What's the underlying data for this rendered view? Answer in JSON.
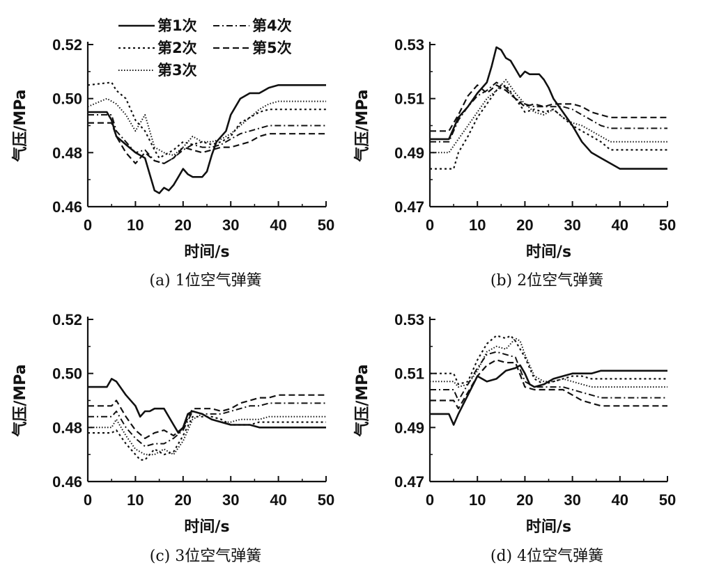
{
  "legend": [
    {
      "label": "第1次",
      "dash": "solid"
    },
    {
      "label": "第2次",
      "dash": "dot"
    },
    {
      "label": "第3次",
      "dash": "finedot"
    },
    {
      "label": "第4次",
      "dash": "dashdot"
    },
    {
      "label": "第5次",
      "dash": "dash"
    }
  ],
  "chart_data": [
    {
      "type": "line",
      "caption": "(a) 1位空气弹簧",
      "xlabel": "时间/s",
      "ylabel": "气压/MPa",
      "xlim": [
        0,
        50
      ],
      "ylim": [
        0.46,
        0.52
      ],
      "xticks": [
        "0",
        "10",
        "20",
        "30",
        "40",
        "50"
      ],
      "yticks": [
        "0.46",
        "0.48",
        "0.50",
        "0.52"
      ],
      "legend_position": "top",
      "series": [
        {
          "name": "第1次",
          "x": [
            0,
            4,
            5,
            6,
            8,
            10,
            12,
            13,
            14,
            15,
            16,
            17,
            18,
            19,
            20,
            21,
            22,
            24,
            25,
            26,
            27,
            29,
            30,
            32,
            34,
            36,
            38,
            40,
            50
          ],
          "y": [
            0.495,
            0.495,
            0.492,
            0.486,
            0.483,
            0.48,
            0.478,
            0.472,
            0.466,
            0.465,
            0.467,
            0.466,
            0.468,
            0.471,
            0.474,
            0.472,
            0.471,
            0.471,
            0.473,
            0.479,
            0.484,
            0.488,
            0.494,
            0.5,
            0.502,
            0.502,
            0.504,
            0.505,
            0.505
          ]
        },
        {
          "name": "第2次",
          "x": [
            0,
            5,
            6,
            8,
            10,
            12,
            14,
            15,
            16,
            18,
            20,
            22,
            24,
            26,
            28,
            30,
            32,
            34,
            36,
            38,
            40,
            50
          ],
          "y": [
            0.505,
            0.506,
            0.503,
            0.5,
            0.492,
            0.488,
            0.481,
            0.478,
            0.479,
            0.481,
            0.484,
            0.483,
            0.484,
            0.483,
            0.484,
            0.486,
            0.491,
            0.493,
            0.495,
            0.496,
            0.496,
            0.496
          ]
        },
        {
          "name": "第3次",
          "x": [
            0,
            4,
            6,
            8,
            10,
            12,
            14,
            16,
            18,
            20,
            22,
            24,
            26,
            28,
            30,
            32,
            34,
            36,
            38,
            40,
            50
          ],
          "y": [
            0.497,
            0.5,
            0.498,
            0.494,
            0.488,
            0.494,
            0.482,
            0.48,
            0.479,
            0.482,
            0.486,
            0.484,
            0.484,
            0.485,
            0.487,
            0.49,
            0.493,
            0.496,
            0.498,
            0.499,
            0.499
          ]
        },
        {
          "name": "第4次",
          "x": [
            0,
            5,
            6,
            8,
            10,
            12,
            14,
            16,
            18,
            20,
            22,
            24,
            26,
            28,
            30,
            32,
            34,
            36,
            38,
            40,
            50
          ],
          "y": [
            0.494,
            0.494,
            0.488,
            0.484,
            0.48,
            0.481,
            0.477,
            0.476,
            0.478,
            0.481,
            0.483,
            0.482,
            0.482,
            0.483,
            0.485,
            0.487,
            0.488,
            0.489,
            0.49,
            0.49,
            0.49
          ]
        },
        {
          "name": "第5次",
          "x": [
            0,
            5,
            6,
            8,
            10,
            12,
            14,
            16,
            18,
            20,
            22,
            24,
            26,
            28,
            30,
            32,
            34,
            36,
            38,
            40,
            50
          ],
          "y": [
            0.491,
            0.491,
            0.486,
            0.48,
            0.476,
            0.48,
            0.477,
            0.476,
            0.478,
            0.482,
            0.481,
            0.48,
            0.481,
            0.482,
            0.482,
            0.483,
            0.484,
            0.486,
            0.487,
            0.487,
            0.487
          ]
        }
      ]
    },
    {
      "type": "line",
      "caption": "(b) 2位空气弹簧",
      "xlabel": "时间/s",
      "ylabel": "气压/MPa",
      "xlim": [
        0,
        50
      ],
      "ylim": [
        0.47,
        0.53
      ],
      "xticks": [
        "0",
        "10",
        "20",
        "30",
        "40",
        "50"
      ],
      "yticks": [
        "0.47",
        "0.49",
        "0.51",
        "0.53"
      ],
      "series": [
        {
          "name": "第1次",
          "x": [
            0,
            4,
            6,
            8,
            10,
            12,
            13,
            14,
            15,
            16,
            17,
            18,
            19,
            20,
            21,
            22,
            23,
            24,
            25,
            26,
            28,
            30,
            32,
            34,
            36,
            38,
            40,
            50
          ],
          "y": [
            0.495,
            0.495,
            0.503,
            0.507,
            0.512,
            0.516,
            0.522,
            0.529,
            0.528,
            0.525,
            0.524,
            0.521,
            0.518,
            0.52,
            0.519,
            0.519,
            0.519,
            0.517,
            0.514,
            0.51,
            0.505,
            0.5,
            0.494,
            0.49,
            0.488,
            0.486,
            0.484,
            0.484
          ]
        },
        {
          "name": "第2次",
          "x": [
            0,
            5,
            6,
            8,
            10,
            12,
            14,
            16,
            18,
            20,
            22,
            24,
            26,
            28,
            30,
            32,
            34,
            36,
            38,
            40,
            50
          ],
          "y": [
            0.484,
            0.484,
            0.49,
            0.496,
            0.503,
            0.508,
            0.513,
            0.515,
            0.51,
            0.505,
            0.506,
            0.505,
            0.506,
            0.503,
            0.5,
            0.498,
            0.496,
            0.494,
            0.491,
            0.491,
            0.491
          ]
        },
        {
          "name": "第3次",
          "x": [
            0,
            4,
            6,
            8,
            10,
            12,
            14,
            16,
            18,
            20,
            22,
            24,
            26,
            28,
            30,
            32,
            34,
            36,
            38,
            40,
            50
          ],
          "y": [
            0.49,
            0.49,
            0.495,
            0.5,
            0.505,
            0.51,
            0.513,
            0.517,
            0.512,
            0.508,
            0.505,
            0.504,
            0.506,
            0.503,
            0.501,
            0.5,
            0.498,
            0.496,
            0.494,
            0.494,
            0.494
          ]
        },
        {
          "name": "第4次",
          "x": [
            0,
            4,
            6,
            8,
            10,
            12,
            14,
            16,
            18,
            20,
            22,
            24,
            26,
            28,
            30,
            32,
            34,
            36,
            38,
            40,
            50
          ],
          "y": [
            0.494,
            0.494,
            0.502,
            0.507,
            0.511,
            0.513,
            0.516,
            0.514,
            0.51,
            0.508,
            0.507,
            0.507,
            0.507,
            0.507,
            0.506,
            0.504,
            0.502,
            0.5,
            0.499,
            0.499,
            0.499
          ]
        },
        {
          "name": "第5次",
          "x": [
            0,
            4,
            6,
            8,
            10,
            12,
            14,
            16,
            18,
            20,
            22,
            24,
            26,
            28,
            30,
            32,
            34,
            36,
            38,
            40,
            50
          ],
          "y": [
            0.498,
            0.498,
            0.504,
            0.511,
            0.515,
            0.512,
            0.515,
            0.513,
            0.51,
            0.507,
            0.508,
            0.507,
            0.508,
            0.508,
            0.508,
            0.507,
            0.505,
            0.504,
            0.503,
            0.503,
            0.503
          ]
        }
      ]
    },
    {
      "type": "line",
      "caption": "(c) 3位空气弹簧",
      "xlabel": "时间/s",
      "ylabel": "气压/MPa",
      "xlim": [
        0,
        50
      ],
      "ylim": [
        0.46,
        0.52
      ],
      "xticks": [
        "0",
        "10",
        "20",
        "30",
        "40",
        "50"
      ],
      "yticks": [
        "0.46",
        "0.48",
        "0.50",
        "0.52"
      ],
      "series": [
        {
          "name": "第1次",
          "x": [
            0,
            4,
            5,
            6,
            8,
            10,
            11,
            12,
            13,
            14,
            16,
            18,
            19,
            20,
            21,
            22,
            24,
            26,
            28,
            30,
            32,
            34,
            36,
            40,
            50
          ],
          "y": [
            0.495,
            0.495,
            0.498,
            0.497,
            0.492,
            0.488,
            0.484,
            0.486,
            0.486,
            0.487,
            0.487,
            0.481,
            0.478,
            0.48,
            0.485,
            0.486,
            0.485,
            0.483,
            0.482,
            0.481,
            0.481,
            0.481,
            0.48,
            0.48,
            0.48
          ]
        },
        {
          "name": "第2次",
          "x": [
            0,
            5,
            6,
            8,
            10,
            11,
            12,
            14,
            16,
            18,
            20,
            22,
            24,
            26,
            28,
            30,
            32,
            34,
            36,
            38,
            40,
            50
          ],
          "y": [
            0.478,
            0.478,
            0.479,
            0.474,
            0.47,
            0.468,
            0.468,
            0.472,
            0.47,
            0.471,
            0.477,
            0.484,
            0.484,
            0.484,
            0.483,
            0.481,
            0.481,
            0.481,
            0.482,
            0.482,
            0.482,
            0.482
          ]
        },
        {
          "name": "第3次",
          "x": [
            0,
            5,
            6,
            8,
            10,
            12,
            14,
            16,
            18,
            20,
            22,
            24,
            26,
            28,
            30,
            32,
            34,
            36,
            38,
            40,
            50
          ],
          "y": [
            0.48,
            0.48,
            0.483,
            0.477,
            0.472,
            0.47,
            0.47,
            0.472,
            0.47,
            0.475,
            0.483,
            0.485,
            0.483,
            0.482,
            0.482,
            0.483,
            0.483,
            0.483,
            0.484,
            0.484,
            0.484
          ]
        },
        {
          "name": "第4次",
          "x": [
            0,
            5,
            6,
            8,
            10,
            12,
            14,
            16,
            18,
            20,
            22,
            24,
            26,
            28,
            30,
            32,
            34,
            36,
            38,
            40,
            50
          ],
          "y": [
            0.484,
            0.484,
            0.486,
            0.48,
            0.476,
            0.473,
            0.474,
            0.474,
            0.476,
            0.479,
            0.486,
            0.485,
            0.485,
            0.485,
            0.486,
            0.487,
            0.488,
            0.488,
            0.489,
            0.489,
            0.489
          ]
        },
        {
          "name": "第5次",
          "x": [
            0,
            5,
            6,
            8,
            10,
            12,
            14,
            16,
            18,
            20,
            22,
            24,
            26,
            28,
            30,
            32,
            34,
            36,
            38,
            40,
            50
          ],
          "y": [
            0.488,
            0.488,
            0.49,
            0.484,
            0.479,
            0.476,
            0.478,
            0.479,
            0.477,
            0.48,
            0.487,
            0.487,
            0.487,
            0.486,
            0.487,
            0.489,
            0.49,
            0.491,
            0.491,
            0.492,
            0.492
          ]
        }
      ]
    },
    {
      "type": "line",
      "caption": "(d) 4位空气弹簧",
      "xlabel": "时间/s",
      "ylabel": "气压/MPa",
      "xlim": [
        0,
        50
      ],
      "ylim": [
        0.47,
        0.53
      ],
      "xticks": [
        "0",
        "10",
        "20",
        "30",
        "40",
        "50"
      ],
      "yticks": [
        "0.47",
        "0.49",
        "0.51",
        "0.53"
      ],
      "series": [
        {
          "name": "第1次",
          "x": [
            0,
            4,
            5,
            6,
            8,
            10,
            12,
            14,
            16,
            18,
            19,
            20,
            21,
            22,
            24,
            26,
            28,
            30,
            32,
            34,
            36,
            40,
            50
          ],
          "y": [
            0.495,
            0.495,
            0.491,
            0.495,
            0.502,
            0.509,
            0.507,
            0.508,
            0.511,
            0.512,
            0.513,
            0.51,
            0.506,
            0.505,
            0.506,
            0.508,
            0.509,
            0.51,
            0.51,
            0.51,
            0.511,
            0.511,
            0.511
          ]
        },
        {
          "name": "第2次",
          "x": [
            0,
            5,
            6,
            8,
            10,
            12,
            14,
            16,
            17,
            18,
            20,
            22,
            24,
            26,
            28,
            30,
            32,
            34,
            36,
            38,
            40,
            50
          ],
          "y": [
            0.51,
            0.51,
            0.506,
            0.507,
            0.515,
            0.521,
            0.524,
            0.523,
            0.524,
            0.522,
            0.516,
            0.508,
            0.506,
            0.507,
            0.508,
            0.509,
            0.509,
            0.508,
            0.508,
            0.508,
            0.508,
            0.508
          ]
        },
        {
          "name": "第3次",
          "x": [
            0,
            5,
            6,
            8,
            10,
            12,
            14,
            16,
            18,
            19,
            20,
            22,
            24,
            26,
            28,
            30,
            32,
            34,
            36,
            38,
            40,
            50
          ],
          "y": [
            0.507,
            0.507,
            0.505,
            0.506,
            0.511,
            0.518,
            0.52,
            0.519,
            0.523,
            0.522,
            0.517,
            0.509,
            0.507,
            0.507,
            0.508,
            0.507,
            0.506,
            0.505,
            0.505,
            0.505,
            0.505,
            0.505
          ]
        },
        {
          "name": "第4次",
          "x": [
            0,
            5,
            6,
            8,
            10,
            12,
            14,
            16,
            18,
            20,
            22,
            24,
            26,
            28,
            30,
            32,
            34,
            36,
            38,
            40,
            50
          ],
          "y": [
            0.504,
            0.504,
            0.5,
            0.506,
            0.512,
            0.517,
            0.518,
            0.517,
            0.516,
            0.507,
            0.505,
            0.505,
            0.505,
            0.505,
            0.504,
            0.503,
            0.502,
            0.501,
            0.501,
            0.501,
            0.501
          ]
        },
        {
          "name": "第5次",
          "x": [
            0,
            5,
            6,
            8,
            10,
            12,
            14,
            16,
            18,
            20,
            22,
            24,
            26,
            28,
            30,
            32,
            34,
            36,
            38,
            40,
            50
          ],
          "y": [
            0.5,
            0.5,
            0.497,
            0.503,
            0.509,
            0.513,
            0.515,
            0.514,
            0.514,
            0.505,
            0.504,
            0.504,
            0.504,
            0.504,
            0.502,
            0.5,
            0.499,
            0.498,
            0.498,
            0.498,
            0.498
          ]
        }
      ]
    }
  ]
}
